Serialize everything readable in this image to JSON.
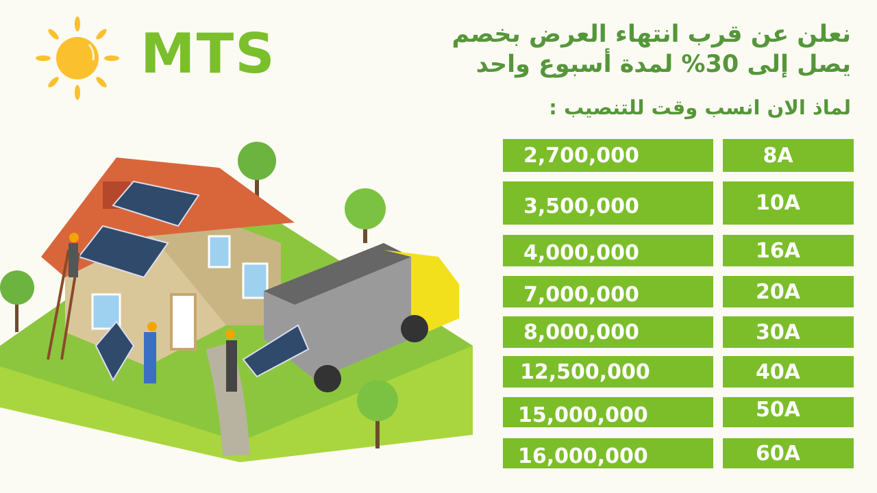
{
  "brand": {
    "name": "MTS",
    "logo_icon": "sun-icon"
  },
  "headline": {
    "line1": "نعلن عن قرب انتهاء العرض بخصم",
    "line2": "يصل إلى 30% لمدة أسبوع واحد",
    "subheading": "لماذ الان انسب وقت  للتنصيب :"
  },
  "price_table": [
    {
      "price": "2,700,000",
      "capacity": "8A"
    },
    {
      "price": "3,500,000",
      "capacity": "10A"
    },
    {
      "price": "4,000,000",
      "capacity": "16A"
    },
    {
      "price": "7,000,000",
      "capacity": "20A"
    },
    {
      "price": "8,000,000",
      "capacity": "30A"
    },
    {
      "price": "12,500,000",
      "capacity": "40A"
    },
    {
      "price": "15,000,000",
      "capacity": "50A"
    },
    {
      "price": "16,000,000",
      "capacity": "60A"
    }
  ],
  "colors": {
    "bar_green": "#7cbd2a",
    "text_green": "#55963a",
    "brand_green": "#7bbf2c",
    "sun": "#fbbf2f",
    "background": "#fbfbf3"
  }
}
